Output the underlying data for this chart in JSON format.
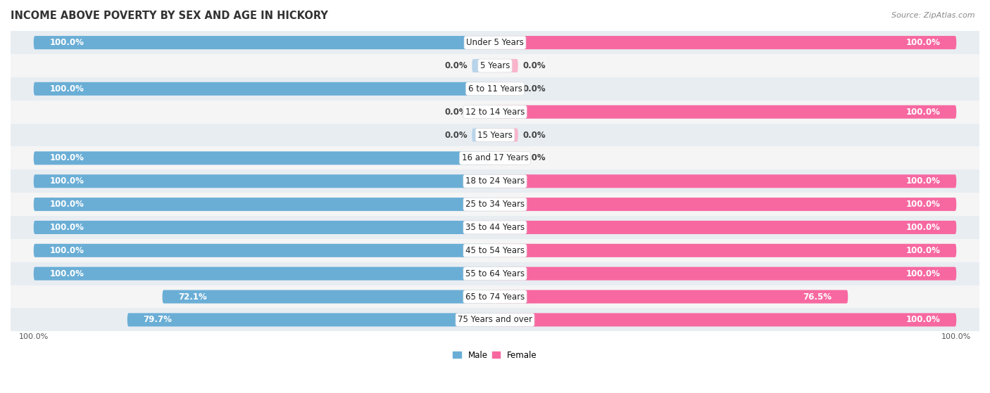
{
  "title": "INCOME ABOVE POVERTY BY SEX AND AGE IN HICKORY",
  "source": "Source: ZipAtlas.com",
  "categories": [
    "Under 5 Years",
    "5 Years",
    "6 to 11 Years",
    "12 to 14 Years",
    "15 Years",
    "16 and 17 Years",
    "18 to 24 Years",
    "25 to 34 Years",
    "35 to 44 Years",
    "45 to 54 Years",
    "55 to 64 Years",
    "65 to 74 Years",
    "75 Years and over"
  ],
  "male": [
    100.0,
    0.0,
    100.0,
    0.0,
    0.0,
    100.0,
    100.0,
    100.0,
    100.0,
    100.0,
    100.0,
    72.1,
    79.7
  ],
  "female": [
    100.0,
    0.0,
    0.0,
    100.0,
    0.0,
    0.0,
    100.0,
    100.0,
    100.0,
    100.0,
    100.0,
    76.5,
    100.0
  ],
  "male_color": "#6aaed6",
  "female_color": "#f768a1",
  "male_color_light": "#b8d4ea",
  "female_color_light": "#f9b4cb",
  "bg_row_dark": "#e8edf2",
  "bg_row_light": "#f5f5f5",
  "bar_height": 0.58,
  "zero_stub": 5.0,
  "xlim": 100,
  "legend_male": "Male",
  "legend_female": "Female",
  "title_fontsize": 10.5,
  "label_fontsize": 8.5,
  "cat_fontsize": 8.5,
  "tick_fontsize": 8,
  "source_fontsize": 8
}
